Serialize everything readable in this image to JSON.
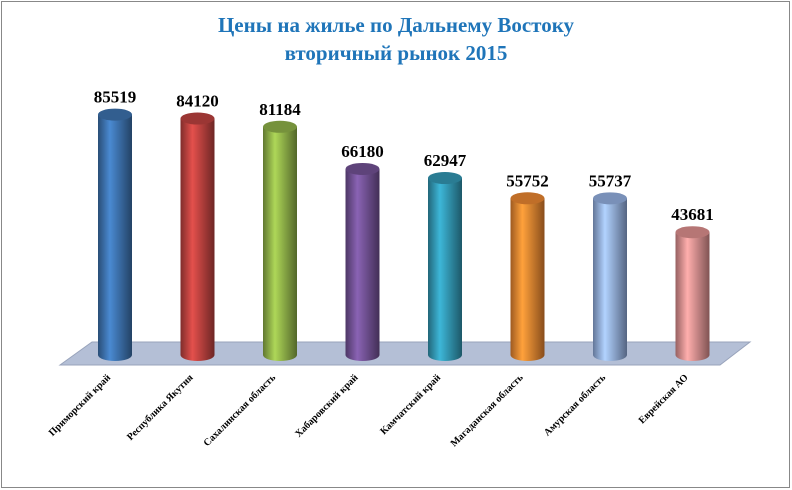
{
  "chart_data": {
    "type": "cylinder-bar",
    "title": "Цены на жилье по Дальнему Востоку",
    "subtitle": "вторичный рынок 2015",
    "categories": [
      "Приморский край",
      "Республика Якутия",
      "Сахалинская область",
      "Хабаровский край",
      "Камчатский край",
      "Магаданская область",
      "Амурская область",
      "Еврейская АО"
    ],
    "values": [
      85519,
      84120,
      81184,
      66180,
      62947,
      55752,
      55737,
      43681
    ],
    "colors": [
      "#3b6ea8",
      "#b6403d",
      "#8bac46",
      "#6e4f90",
      "#3192ad",
      "#e2812f",
      "#8ea9d9",
      "#d68b8a"
    ],
    "ylim": [
      0,
      90000
    ]
  }
}
